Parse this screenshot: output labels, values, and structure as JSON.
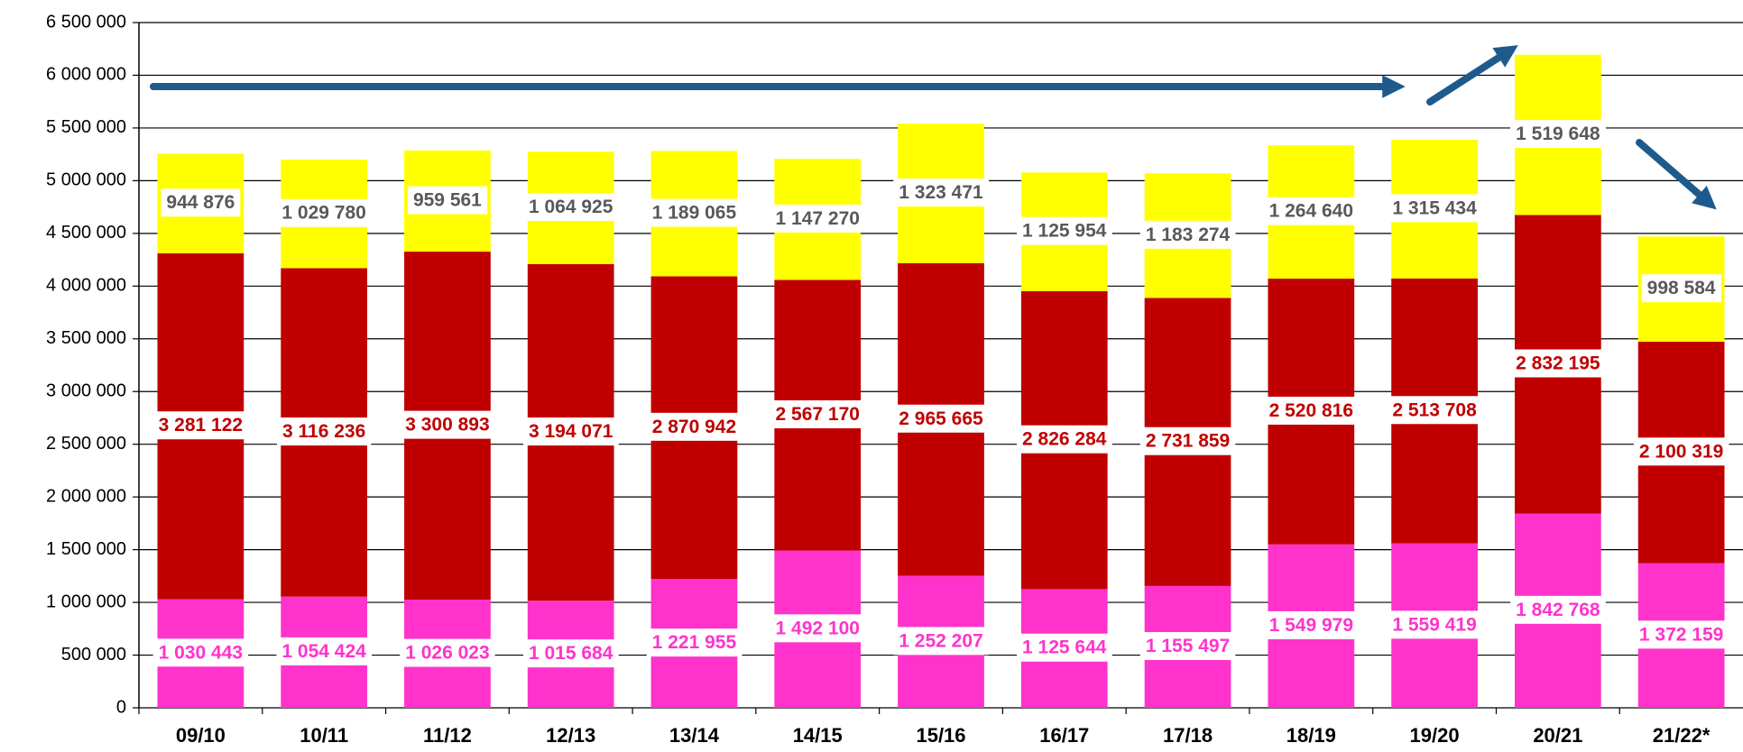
{
  "chart_data": {
    "type": "stacked_bar",
    "categories": [
      "09/10",
      "10/11",
      "11/12",
      "12/13",
      "13/14",
      "14/15",
      "15/16",
      "16/17",
      "17/18",
      "18/19",
      "19/20",
      "20/21",
      "21/22*"
    ],
    "series": [
      {
        "color": "#ff33cc",
        "label_color": "#ff33cc",
        "values": [
          1030443,
          1054424,
          1026023,
          1015684,
          1221955,
          1492100,
          1252207,
          1125644,
          1155497,
          1549979,
          1559419,
          1842768,
          1372159
        ],
        "value_labels": [
          "1 030 443",
          "1 054 424",
          "1 026 023",
          "1 015 684",
          "1 221 955",
          "1 492 100",
          "1 252 207",
          "1 125 644",
          "1 155 497",
          "1 549 979",
          "1 559 419",
          "1 842 768",
          "1 372 159"
        ]
      },
      {
        "color": "#c00000",
        "label_color": "#c00000",
        "values": [
          3281122,
          3116236,
          3300893,
          3194071,
          2870942,
          2567170,
          2965665,
          2826284,
          2731859,
          2520816,
          2513708,
          2832195,
          2100319
        ],
        "value_labels": [
          "3 281 122",
          "3 116 236",
          "3 300 893",
          "3 194 071",
          "2 870 942",
          "2 567 170",
          "2 965 665",
          "2 826 284",
          "2 731 859",
          "2 520 816",
          "2 513 708",
          "2 832 195",
          "2 100 319"
        ]
      },
      {
        "color": "#ffff00",
        "label_color": "#595959",
        "values": [
          944876,
          1029780,
          959561,
          1064925,
          1189065,
          1147270,
          1323471,
          1125954,
          1183274,
          1264640,
          1315434,
          1519648,
          998584
        ],
        "value_labels": [
          "944 876",
          "1 029 780",
          "959 561",
          "1 064 925",
          "1 189 065",
          "1 147 270",
          "1 323 471",
          "1 125 954",
          "1 183 274",
          "1 264 640",
          "1 315 434",
          "1 519 648",
          "998 584"
        ]
      }
    ],
    "ylim": [
      0,
      6500000
    ],
    "yticks": [
      0,
      {
        "value": 500000,
        "label": "500 000"
      },
      {
        "value": 1000000,
        "label": "1 000 000"
      },
      {
        "value": 1500000,
        "label": "1 500 000"
      },
      {
        "value": 2000000,
        "label": "2 000 000"
      },
      {
        "value": 2500000,
        "label": "2 500 000"
      },
      {
        "value": 3000000,
        "label": "3 000 000"
      },
      {
        "value": 3500000,
        "label": "3 500 000"
      },
      {
        "value": 4000000,
        "label": "4 000 000"
      },
      {
        "value": 4500000,
        "label": "4 500 000"
      },
      {
        "value": 5000000,
        "label": "5 000 000"
      },
      {
        "value": 5500000,
        "label": "5 500 000"
      },
      {
        "value": 6000000,
        "label": "6 000 000"
      },
      {
        "value": 6500000,
        "label": "6 500 000"
      }
    ],
    "grid": true
  }
}
